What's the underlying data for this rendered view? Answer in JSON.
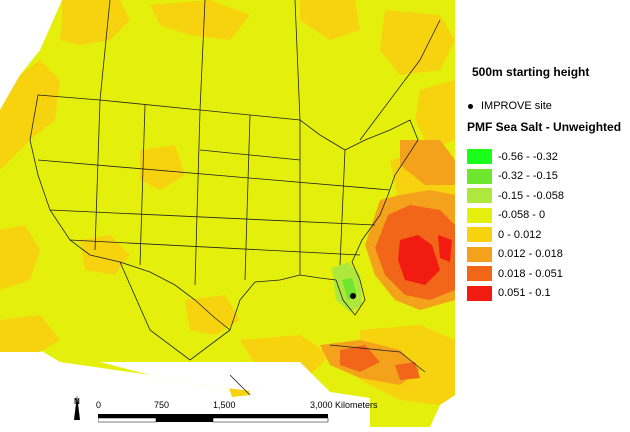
{
  "map": {
    "site_marker": "IMPROVE site"
  },
  "legend": {
    "height_title": "500m starting height",
    "site_label": "IMPROVE site",
    "title": "PMF Sea Salt - Unweighted",
    "entries": [
      {
        "label": "-0.56 - -0.32",
        "color": "#1aff1a"
      },
      {
        "label": "-0.32 - -0.15",
        "color": "#6ee62e"
      },
      {
        "label": "-0.15 - -0.058",
        "color": "#aee83c"
      },
      {
        "label": "-0.058 - 0",
        "color": "#e4f00c"
      },
      {
        "label": "0 - 0.012",
        "color": "#f7d20f"
      },
      {
        "label": "0.012 - 0.018",
        "color": "#f4a21b"
      },
      {
        "label": "0.018 - 0.051",
        "color": "#f2661a"
      },
      {
        "label": "0.051 - 0.1",
        "color": "#f21b12"
      }
    ]
  },
  "scale_bar": {
    "north": "N",
    "ticks": [
      "0",
      "750",
      "1,500",
      "3,000 Kilometers"
    ]
  },
  "colors": {
    "background": "#ffffff",
    "base_fill": "#e4f00c",
    "border_lines": "#222222"
  }
}
